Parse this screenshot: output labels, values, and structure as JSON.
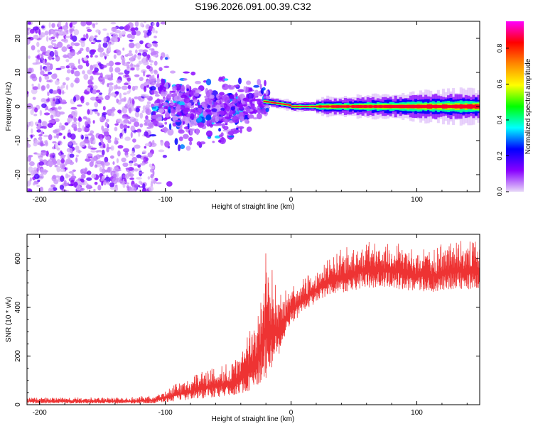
{
  "title": "S196.2026.091.00.39.C32",
  "chart_data": [
    {
      "type": "heatmap",
      "title": "S196.2026.091.00.39.C32",
      "xlabel": "Height of straight line (km)",
      "ylabel": "Frequency (Hz)",
      "xlim": [
        -210,
        150
      ],
      "ylim": [
        -25,
        25
      ],
      "xticks": [
        -200,
        -100,
        0,
        100
      ],
      "yticks": [
        -20,
        -10,
        0,
        10,
        20
      ],
      "colorbar": {
        "label": "Normalized spectral amplitude",
        "range": [
          0,
          0.95
        ],
        "ticks": [
          0.0,
          0.2,
          0.4,
          0.6,
          0.8
        ],
        "colormap": [
          "#e8d8f8",
          "#8800ff",
          "#0000ff",
          "#00ffff",
          "#00ff00",
          "#ffff00",
          "#ff8800",
          "#ff0000",
          "#ff00ff"
        ]
      },
      "features": [
        {
          "region": "noise",
          "x_range": [
            -210,
            -110
          ],
          "freq_range": [
            -25,
            25
          ],
          "amplitude": "0.0-0.2 scattered"
        },
        {
          "region": "transition",
          "x_range": [
            -110,
            -20
          ],
          "freq_center": "about 0, sloping from +5 to -5",
          "amplitude": "0.1-0.3"
        },
        {
          "region": "signal",
          "x_range": [
            -20,
            150
          ],
          "freq_center": 0,
          "amplitude": "0.8-0.95 narrow band"
        }
      ]
    },
    {
      "type": "line",
      "xlabel": "Height of straight line (km)",
      "ylabel": "SNR (10 * v/v)",
      "xlim": [
        -210,
        150
      ],
      "ylim": [
        0,
        700
      ],
      "xticks": [
        -200,
        -100,
        0,
        100
      ],
      "yticks": [
        0,
        200,
        400,
        600
      ],
      "color": "#ee3333",
      "series": [
        {
          "name": "SNR",
          "x": [
            -210,
            -190,
            -170,
            -150,
            -130,
            -110,
            -100,
            -90,
            -80,
            -70,
            -60,
            -50,
            -40,
            -30,
            -25,
            -20,
            -15,
            -10,
            -5,
            0,
            10,
            20,
            30,
            40,
            50,
            60,
            70,
            80,
            90,
            100,
            110,
            120,
            130,
            140,
            150
          ],
          "low": [
            5,
            5,
            5,
            5,
            5,
            5,
            10,
            15,
            20,
            25,
            30,
            35,
            45,
            60,
            80,
            100,
            150,
            200,
            280,
            330,
            380,
            420,
            450,
            460,
            470,
            480,
            480,
            480,
            470,
            470,
            460,
            460,
            470,
            470,
            480
          ],
          "high": [
            30,
            30,
            30,
            30,
            30,
            40,
            60,
            90,
            110,
            150,
            150,
            170,
            200,
            360,
            400,
            640,
            560,
            450,
            470,
            490,
            520,
            560,
            600,
            640,
            660,
            680,
            670,
            670,
            660,
            630,
            650,
            660,
            690,
            680,
            670
          ]
        }
      ]
    }
  ]
}
